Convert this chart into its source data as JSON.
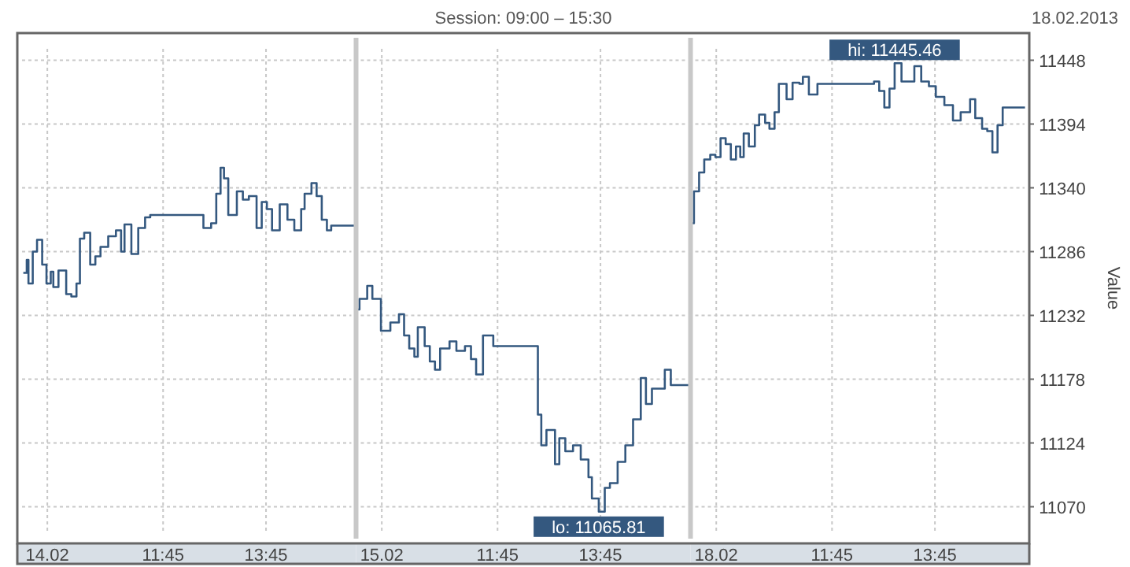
{
  "chart_data": [
    {
      "type": "step",
      "tick_labels": "x",
      "grid": true,
      "x": [
        "2013-02-14T09:02",
        "2013-02-14T09:06",
        "2013-02-14T09:08",
        "2013-02-14T09:13",
        "2013-02-14T09:18",
        "2013-02-14T09:24",
        "2013-02-14T09:29",
        "2013-02-14T09:34",
        "2013-02-14T09:37",
        "2013-02-14T09:43",
        "2013-02-14T09:52",
        "2013-02-14T09:58",
        "2013-02-14T10:04",
        "2013-02-14T10:08",
        "2013-02-14T10:13",
        "2013-02-14T10:20",
        "2013-02-14T10:26",
        "2013-02-14T10:32",
        "2013-02-14T10:41",
        "2013-02-14T10:50",
        "2013-02-14T10:56",
        "2013-02-14T11:00",
        "2013-02-14T11:08",
        "2013-02-14T11:16",
        "2013-02-14T11:24",
        "2013-02-14T11:30",
        "2013-02-14T12:32",
        "2013-02-14T12:41",
        "2013-02-14T12:47",
        "2013-02-14T12:52",
        "2013-02-14T12:56",
        "2013-02-14T13:01",
        "2013-02-14T13:11",
        "2013-02-14T13:18",
        "2013-02-14T13:25",
        "2013-02-14T13:34",
        "2013-02-14T13:40",
        "2013-02-14T13:46",
        "2013-02-14T13:52",
        "2013-02-14T14:01",
        "2013-02-14T14:10",
        "2013-02-14T14:18",
        "2013-02-14T14:26",
        "2013-02-14T14:30",
        "2013-02-14T14:38",
        "2013-02-14T14:44",
        "2013-02-14T14:50",
        "2013-02-14T14:56",
        "2013-02-14T15:01",
        "2013-02-14T15:30"
      ],
      "series": [
        {
          "color": "#34587f",
          "values": [
            11268,
            11279,
            11259,
            11286,
            11296,
            11275,
            11259,
            11269,
            11256,
            11270,
            11250,
            11248,
            11259,
            11297,
            11302,
            11275,
            11282,
            11290,
            11299,
            11304,
            11286,
            11309,
            11284,
            11306,
            11315,
            11317,
            11306,
            11310,
            11335,
            11357,
            11348,
            11317,
            11337,
            11330,
            11333,
            11306,
            11328,
            11322,
            11304,
            11326,
            11313,
            11304,
            11322,
            11335,
            11344,
            11333,
            11313,
            11304,
            11308,
            11308
          ]
        }
      ],
      "xlim": [
        "2013-02-14T08:55",
        "2013-02-14T15:30"
      ],
      "xticks": [
        {
          "value": "2013-02-14T09:30",
          "label": "14.02"
        },
        {
          "value": "2013-02-14T11:45",
          "label": "11:45"
        },
        {
          "value": "2013-02-14T13:45",
          "label": "13:45"
        }
      ],
      "ylim": [
        11039,
        11471
      ],
      "yticks": [
        11070,
        11124,
        11178,
        11232,
        11286,
        11340,
        11394,
        11448
      ]
    },
    {
      "type": "step",
      "tick_labels": "x",
      "grid": true,
      "title": "Session: 09:00 – 15:30",
      "x": [
        "2013-02-15T09:00",
        "2013-02-15T09:04",
        "2013-02-15T09:13",
        "2013-02-15T09:19",
        "2013-02-15T09:25",
        "2013-02-15T09:29",
        "2013-02-15T09:40",
        "2013-02-15T09:50",
        "2013-02-15T09:56",
        "2013-02-15T10:02",
        "2013-02-15T10:08",
        "2013-02-15T10:12",
        "2013-02-15T10:20",
        "2013-02-15T10:26",
        "2013-02-15T10:32",
        "2013-02-15T10:38",
        "2013-02-15T10:49",
        "2013-02-15T10:57",
        "2013-02-15T11:07",
        "2013-02-15T11:14",
        "2013-02-15T11:20",
        "2013-02-15T11:28",
        "2013-02-15T11:40",
        "2013-02-15T12:32",
        "2013-02-15T12:36",
        "2013-02-15T12:42",
        "2013-02-15T12:52",
        "2013-02-15T12:57",
        "2013-02-15T13:04",
        "2013-02-15T13:13",
        "2013-02-15T13:22",
        "2013-02-15T13:31",
        "2013-02-15T13:35",
        "2013-02-15T13:43",
        "2013-02-15T13:50",
        "2013-02-15T13:56",
        "2013-02-15T14:05",
        "2013-02-15T14:14",
        "2013-02-15T14:23",
        "2013-02-15T14:32",
        "2013-02-15T14:38",
        "2013-02-15T14:45",
        "2013-02-15T14:54",
        "2013-02-15T15:00",
        "2013-02-15T15:07",
        "2013-02-15T15:30"
      ],
      "series": [
        {
          "color": "#34587f",
          "values": [
            11237,
            11246,
            11257,
            11246,
            11246,
            11219,
            11226,
            11233,
            11215,
            11204,
            11197,
            11222,
            11206,
            11193,
            11186,
            11204,
            11210,
            11202,
            11206,
            11195,
            11182,
            11215,
            11206,
            11148,
            11122,
            11135,
            11106,
            11128,
            11117,
            11122,
            11110,
            11095,
            11077,
            11065.81,
            11086,
            11090,
            11108,
            11122,
            11144,
            11179,
            11157,
            11170,
            11170,
            11186,
            11173,
            11173
          ]
        }
      ],
      "xlim": [
        "2013-02-15T09:00",
        "2013-02-15T15:30"
      ],
      "xticks": [
        {
          "value": "2013-02-15T09:30",
          "label": "15.02"
        },
        {
          "value": "2013-02-15T11:45",
          "label": "11:45"
        },
        {
          "value": "2013-02-15T13:45",
          "label": "13:45"
        }
      ],
      "ylim": [
        11039,
        11471
      ],
      "yticks": [
        11070,
        11124,
        11178,
        11232,
        11286,
        11340,
        11394,
        11448
      ],
      "annotations": [
        {
          "text": "lo: 11065.81",
          "x": "2013-02-15T13:43",
          "y": 11065.81
        }
      ]
    },
    {
      "type": "step",
      "grid": true,
      "subtitle": "18.02.2013",
      "ylabel": "Value",
      "x": [
        "2013-02-18T09:02",
        "2013-02-18T09:04",
        "2013-02-18T09:10",
        "2013-02-18T09:16",
        "2013-02-18T09:23",
        "2013-02-18T09:29",
        "2013-02-18T09:35",
        "2013-02-18T09:41",
        "2013-02-18T09:47",
        "2013-02-18T09:53",
        "2013-02-18T09:58",
        "2013-02-18T10:02",
        "2013-02-18T10:08",
        "2013-02-18T10:15",
        "2013-02-18T10:20",
        "2013-02-18T10:27",
        "2013-02-18T10:32",
        "2013-02-18T10:38",
        "2013-02-18T10:43",
        "2013-02-18T10:52",
        "2013-02-18T10:59",
        "2013-02-18T11:07",
        "2013-02-18T11:11",
        "2013-02-18T11:18",
        "2013-02-18T11:28",
        "2013-02-18T11:47",
        "2013-02-18T12:34",
        "2013-02-18T12:40",
        "2013-02-18T12:46",
        "2013-02-18T12:52",
        "2013-02-18T12:58",
        "2013-02-18T13:06",
        "2013-02-18T13:13",
        "2013-02-18T13:21",
        "2013-02-18T13:29",
        "2013-02-18T13:38",
        "2013-02-18T13:46",
        "2013-02-18T13:56",
        "2013-02-18T14:06",
        "2013-02-18T14:15",
        "2013-02-18T14:26",
        "2013-02-18T14:32",
        "2013-02-18T14:40",
        "2013-02-18T14:46",
        "2013-02-18T14:52",
        "2013-02-18T14:58",
        "2013-02-18T15:04",
        "2013-02-18T15:30"
      ],
      "series": [
        {
          "color": "#34587f",
          "values": [
            11310,
            11337,
            11353,
            11364,
            11368,
            11366,
            11382,
            11377,
            11364,
            11375,
            11366,
            11386,
            11375,
            11393,
            11402,
            11395,
            11390,
            11404,
            11428,
            11415,
            11429,
            11428,
            11434,
            11419,
            11428,
            11428,
            11430,
            11422,
            11408,
            11424,
            11445.46,
            11430,
            11430,
            11443,
            11430,
            11426,
            11417,
            11410,
            11397,
            11404,
            11415,
            11399,
            11390,
            11388,
            11370,
            11393,
            11408,
            11408
          ]
        }
      ],
      "xlim": [
        "2013-02-18T09:00",
        "2013-02-18T15:35"
      ],
      "xticks": [
        {
          "value": "2013-02-18T09:30",
          "label": "18.02"
        },
        {
          "value": "2013-02-18T11:45",
          "label": "11:45"
        },
        {
          "value": "2013-02-18T13:45",
          "label": "13:45"
        }
      ],
      "ylim": [
        11039,
        11471
      ],
      "yticks": [
        11070,
        11124,
        11178,
        11232,
        11286,
        11340,
        11394,
        11448
      ],
      "annotations": [
        {
          "text": "hi: 11445.46",
          "x": "2013-02-18T12:58",
          "y": 11445.46
        }
      ]
    }
  ]
}
